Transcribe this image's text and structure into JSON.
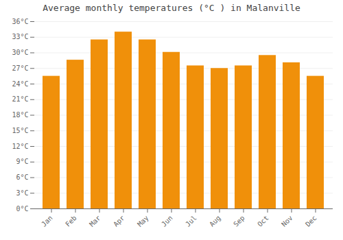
{
  "chart_data": {
    "type": "bar",
    "title": "Average monthly temperatures (°C ) in Malanville",
    "categories": [
      "Jan",
      "Feb",
      "Mar",
      "Apr",
      "May",
      "Jun",
      "Jul",
      "Aug",
      "Sep",
      "Oct",
      "Nov",
      "Dec"
    ],
    "values": [
      25.5,
      28.6,
      32.5,
      34.0,
      32.5,
      30.1,
      27.5,
      27.0,
      27.5,
      29.5,
      28.1,
      25.5
    ],
    "color": "#F0900A",
    "ylim": [
      0,
      36
    ],
    "yticks": [
      {
        "value": 0,
        "label": "0°C"
      },
      {
        "value": 3,
        "label": "3°C"
      },
      {
        "value": 6,
        "label": "6°C"
      },
      {
        "value": 9,
        "label": "9°C"
      },
      {
        "value": 12,
        "label": "12°C"
      },
      {
        "value": 15,
        "label": "15°C"
      },
      {
        "value": 18,
        "label": "18°C"
      },
      {
        "value": 21,
        "label": "21°C"
      },
      {
        "value": 24,
        "label": "24°C"
      },
      {
        "value": 27,
        "label": "27°C"
      },
      {
        "value": 30,
        "label": "30°C"
      },
      {
        "value": 33,
        "label": "33°C"
      },
      {
        "value": 36,
        "label": "36°C"
      }
    ],
    "grid": true
  }
}
